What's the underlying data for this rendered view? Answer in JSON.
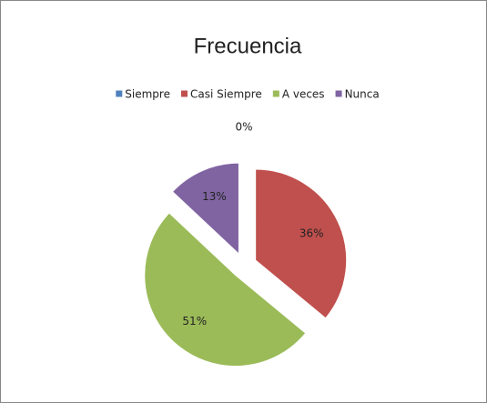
{
  "chart_data": {
    "type": "pie",
    "title": "Frecuencia",
    "categories": [
      "Siempre",
      "Casi Siempre",
      "A veces",
      "Nunca"
    ],
    "values": [
      0,
      36,
      51,
      13
    ],
    "value_labels": [
      "0%",
      "36%",
      "51%",
      "13%"
    ],
    "colors": [
      "#4f81bd",
      "#c0504d",
      "#9bbb59",
      "#8064a2"
    ],
    "legend": "top"
  }
}
